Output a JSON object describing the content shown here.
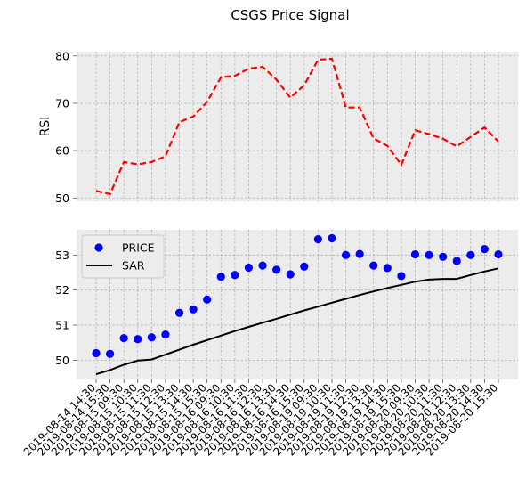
{
  "chart_data": [
    {
      "type": "line",
      "title": "CSGS Price Signal",
      "ylabel": "RSI",
      "ylim": [
        49.3,
        80.9
      ],
      "yticks": [
        50,
        60,
        70,
        80
      ],
      "grid": true,
      "series": [
        {
          "color": "#ff0000",
          "style": "dashed",
          "values": [
            51.5,
            50.8,
            57.6,
            57.1,
            57.6,
            58.8,
            66.0,
            67.2,
            70.3,
            75.5,
            75.8,
            77.3,
            77.7,
            75.0,
            71.2,
            73.8,
            79.2,
            79.4,
            69.1,
            69.1,
            62.6,
            61.0,
            57.0,
            64.3,
            63.5,
            62.5,
            60.9,
            62.9,
            64.9,
            61.9
          ]
        }
      ]
    },
    {
      "type": "scatter",
      "x": [
        "2019-08-14 14:30",
        "2019-08-14 15:30",
        "2019-08-15 09:30",
        "2019-08-15 10:30",
        "2019-08-15 11:30",
        "2019-08-15 12:30",
        "2019-08-15 13:30",
        "2019-08-15 14:30",
        "2019-08-15 15:30",
        "2019-08-16 09:30",
        "2019-08-16 10:30",
        "2019-08-16 11:30",
        "2019-08-16 12:30",
        "2019-08-16 13:30",
        "2019-08-16 14:30",
        "2019-08-16 15:30",
        "2019-08-19 09:30",
        "2019-08-19 10:30",
        "2019-08-19 11:30",
        "2019-08-19 12:30",
        "2019-08-19 13:30",
        "2019-08-19 14:30",
        "2019-08-19 15:30",
        "2019-08-20 09:30",
        "2019-08-20 10:30",
        "2019-08-20 11:30",
        "2019-08-20 12:30",
        "2019-08-20 13:30",
        "2019-08-20 14:30",
        "2019-08-20 15:30"
      ],
      "ylim": [
        49.45,
        53.72
      ],
      "yticks": [
        50,
        51,
        52,
        53
      ],
      "grid": true,
      "legend": "upper-left",
      "series": [
        {
          "name": "PRICE",
          "color": "#0000ff",
          "marker": "circle",
          "values": [
            50.2,
            50.18,
            50.63,
            50.6,
            50.65,
            50.73,
            51.35,
            51.45,
            51.73,
            52.38,
            52.43,
            52.64,
            52.7,
            52.58,
            52.45,
            52.67,
            53.45,
            53.48,
            53.0,
            53.03,
            52.7,
            52.63,
            52.4,
            53.02,
            53.0,
            52.95,
            52.83,
            53.0,
            53.17,
            53.02
          ]
        },
        {
          "name": "SAR",
          "color": "#000000",
          "style": "solid",
          "values": [
            49.6,
            49.72,
            49.87,
            49.99,
            50.02,
            50.16,
            50.3,
            50.44,
            50.57,
            50.7,
            50.83,
            50.95,
            51.07,
            51.18,
            51.3,
            51.42,
            51.53,
            51.64,
            51.75,
            51.86,
            51.96,
            52.06,
            52.15,
            52.24,
            52.3,
            52.32,
            52.32,
            52.43,
            52.53,
            52.62
          ]
        }
      ]
    }
  ]
}
